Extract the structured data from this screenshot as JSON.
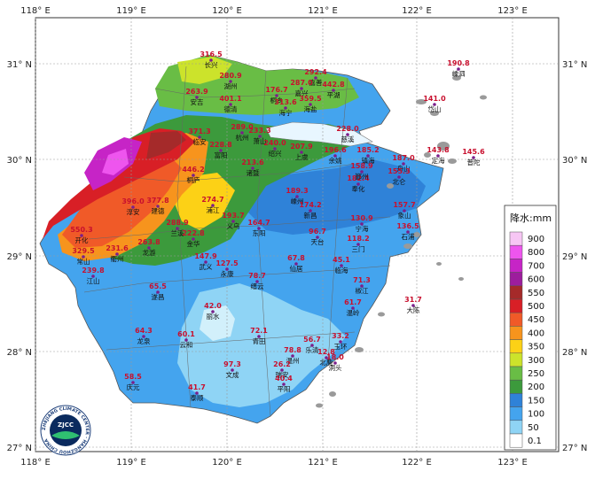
{
  "map": {
    "x_ticks": [
      "118° E",
      "119° E",
      "120° E",
      "121° E",
      "122° E",
      "123° E"
    ],
    "y_ticks": [
      "31° N",
      "30° N",
      "29° N",
      "28° N",
      "27° N"
    ]
  },
  "legend": {
    "title": "降水:mm",
    "levels": [
      {
        "label": "900",
        "color": "#f7c6f4"
      },
      {
        "label": "800",
        "color": "#ee55ee"
      },
      {
        "label": "700",
        "color": "#c624c6"
      },
      {
        "label": "600",
        "color": "#9d1d9d"
      },
      {
        "label": "550",
        "color": "#a52a2a"
      },
      {
        "label": "500",
        "color": "#d81f26"
      },
      {
        "label": "450",
        "color": "#f05a28"
      },
      {
        "label": "400",
        "color": "#f7941d"
      },
      {
        "label": "350",
        "color": "#fcd116"
      },
      {
        "label": "300",
        "color": "#cce32b"
      },
      {
        "label": "250",
        "color": "#69bd45"
      },
      {
        "label": "200",
        "color": "#3c9a3c"
      },
      {
        "label": "150",
        "color": "#2f82d8"
      },
      {
        "label": "100",
        "color": "#44a4ee"
      },
      {
        "label": "50",
        "color": "#8fd4f5"
      },
      {
        "label": "0.1",
        "color": "#ffffff"
      }
    ]
  },
  "logo": {
    "text": "ZJCC",
    "ring_text": "ZHEJIANG CLIMATE CENTER · HANGZHOU CHINA"
  },
  "stations": [
    {
      "name": "长兴",
      "value": "316.5"
    },
    {
      "name": "湖州",
      "value": "280.9"
    },
    {
      "name": "安吉",
      "value": "263.9"
    },
    {
      "name": "德清",
      "value": "401.1"
    },
    {
      "name": "嘉善",
      "value": "292.4"
    },
    {
      "name": "嘉兴",
      "value": "287.0"
    },
    {
      "name": "平湖",
      "value": "442.8"
    },
    {
      "name": "桐乡",
      "value": "176.7"
    },
    {
      "name": "海宁",
      "value": "313.6"
    },
    {
      "name": "海盐",
      "value": "359.5"
    },
    {
      "name": "嵊泗",
      "value": "190.8"
    },
    {
      "name": "岱山",
      "value": "141.0"
    },
    {
      "name": "临安",
      "value": "371.3"
    },
    {
      "name": "杭州",
      "value": "289.0"
    },
    {
      "name": "富阳",
      "value": "228.8"
    },
    {
      "name": "萧山",
      "value": "233.3"
    },
    {
      "name": "绍兴",
      "value": "240.0"
    },
    {
      "name": "上虞",
      "value": "207.9"
    },
    {
      "name": "慈溪",
      "value": "228.0"
    },
    {
      "name": "余姚",
      "value": "196.6"
    },
    {
      "name": "镇海",
      "value": "185.2"
    },
    {
      "name": "舟山",
      "value": "187.0"
    },
    {
      "name": "定海",
      "value": "143.8"
    },
    {
      "name": "普陀",
      "value": "145.6"
    },
    {
      "name": "桐庐",
      "value": "446.2"
    },
    {
      "name": "诸暨",
      "value": "213.6"
    },
    {
      "name": "嵊州",
      "value": "189.3"
    },
    {
      "name": "新昌",
      "value": "174.2"
    },
    {
      "name": "奉化",
      "value": "182.4"
    },
    {
      "name": "鄞州",
      "value": "158.9"
    },
    {
      "name": "北仑",
      "value": "155.3"
    },
    {
      "name": "淳安",
      "value": "396.0"
    },
    {
      "name": "建德",
      "value": "377.8"
    },
    {
      "name": "浦江",
      "value": "274.7"
    },
    {
      "name": "义乌",
      "value": "193.7"
    },
    {
      "name": "东阳",
      "value": "164.7"
    },
    {
      "name": "宁海",
      "value": "130.9"
    },
    {
      "name": "象山",
      "value": "157.7"
    },
    {
      "name": "石浦",
      "value": "136.5"
    },
    {
      "name": "兰溪",
      "value": "288.9"
    },
    {
      "name": "金华",
      "value": "222.8"
    },
    {
      "name": "天台",
      "value": "96.7"
    },
    {
      "name": "三门",
      "value": "118.2"
    },
    {
      "name": "开化",
      "value": "550.3"
    },
    {
      "name": "常山",
      "value": "329.5"
    },
    {
      "name": "衢州",
      "value": "231.6"
    },
    {
      "name": "龙游",
      "value": "263.8"
    },
    {
      "name": "江山",
      "value": "239.8"
    },
    {
      "name": "武义",
      "value": "147.9"
    },
    {
      "name": "永康",
      "value": "127.5"
    },
    {
      "name": "缙云",
      "value": "78.7"
    },
    {
      "name": "仙居",
      "value": "67.8"
    },
    {
      "name": "临海",
      "value": "45.1"
    },
    {
      "name": "椒江",
      "value": "71.3"
    },
    {
      "name": "遂昌",
      "value": "65.5"
    },
    {
      "name": "温岭",
      "value": "61.7"
    },
    {
      "name": "大陈",
      "value": "31.7"
    },
    {
      "name": "丽水",
      "value": "42.0"
    },
    {
      "name": "龙泉",
      "value": "64.3"
    },
    {
      "name": "云和",
      "value": "60.1"
    },
    {
      "name": "青田",
      "value": "72.1"
    },
    {
      "name": "乐清",
      "value": "56.7"
    },
    {
      "name": "温州",
      "value": "78.8"
    },
    {
      "name": "玉环",
      "value": "33.2"
    },
    {
      "name": "洞头",
      "value": "18.0"
    },
    {
      "name": "瑞安",
      "value": "26.2"
    },
    {
      "name": "文成",
      "value": "97.3"
    },
    {
      "name": "平阳",
      "value": "40.4"
    },
    {
      "name": "庆元",
      "value": "58.5"
    },
    {
      "name": "泰顺",
      "value": "41.7"
    },
    {
      "name": "北麂",
      "value": "12.8"
    }
  ]
}
